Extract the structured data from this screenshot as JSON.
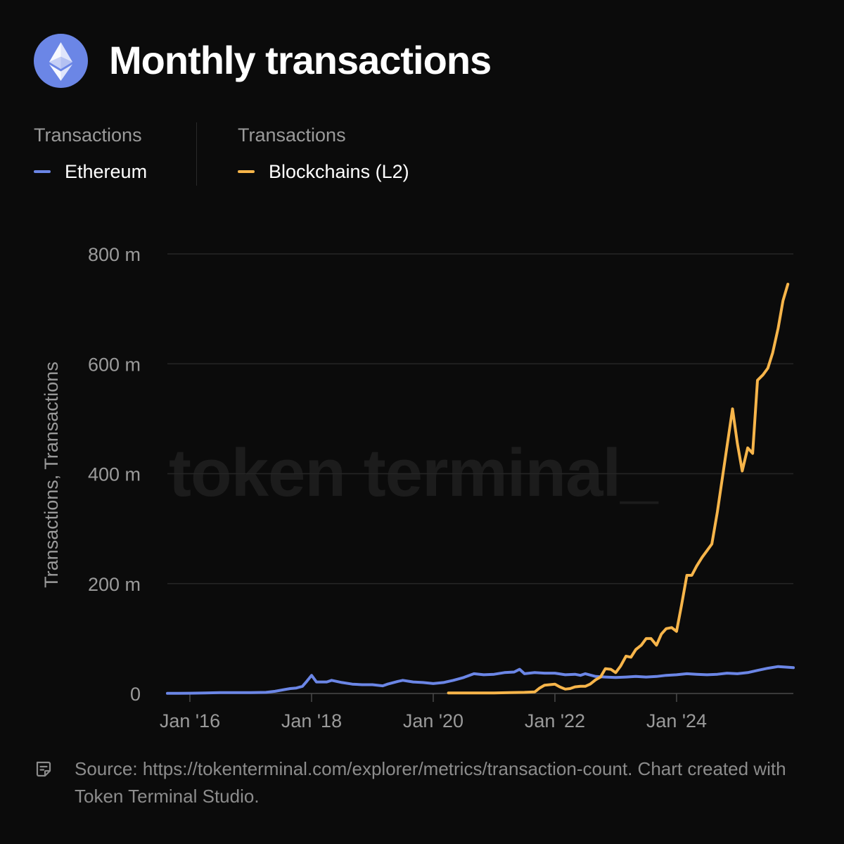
{
  "header": {
    "logo_icon": "ethereum-logo-icon",
    "title": "Monthly transactions"
  },
  "legend": [
    {
      "header": "Transactions",
      "label": "Ethereum",
      "color": "#6b86e6"
    },
    {
      "header": "Transactions",
      "label": "Blockchains (L2)",
      "color": "#f7b54a"
    }
  ],
  "watermark": "token terminal_",
  "footer": {
    "icon": "document-icon",
    "text": "Source: https://tokenterminal.com/explorer/metrics/transaction-count. Chart created with Token Terminal Studio."
  },
  "chart_data": {
    "type": "line",
    "title": "Monthly transactions",
    "xlabel": "",
    "ylabel": "Transactions, Transactions",
    "ylim": [
      0,
      800
    ],
    "y_unit": "m",
    "y_ticks": [
      {
        "value": 0,
        "label": "0"
      },
      {
        "value": 200,
        "label": "200 m"
      },
      {
        "value": 400,
        "label": "400 m"
      },
      {
        "value": 600,
        "label": "600 m"
      },
      {
        "value": 800,
        "label": "800 m"
      }
    ],
    "x_range": [
      2015.63,
      2025.92
    ],
    "x_ticks": [
      {
        "value": 2016,
        "label": "Jan '16"
      },
      {
        "value": 2018,
        "label": "Jan '18"
      },
      {
        "value": 2020,
        "label": "Jan '20"
      },
      {
        "value": 2022,
        "label": "Jan '22"
      },
      {
        "value": 2024,
        "label": "Jan '24"
      }
    ],
    "grid": true,
    "series": [
      {
        "name": "Ethereum",
        "color": "#6b86e6",
        "points": [
          [
            2015.63,
            0.2
          ],
          [
            2016.0,
            0.5
          ],
          [
            2016.25,
            1
          ],
          [
            2016.5,
            1.5
          ],
          [
            2016.75,
            1.5
          ],
          [
            2017.0,
            1.5
          ],
          [
            2017.25,
            2
          ],
          [
            2017.4,
            4
          ],
          [
            2017.55,
            7
          ],
          [
            2017.65,
            9
          ],
          [
            2017.75,
            10
          ],
          [
            2017.85,
            13
          ],
          [
            2017.92,
            22
          ],
          [
            2018.0,
            33
          ],
          [
            2018.08,
            21
          ],
          [
            2018.25,
            21
          ],
          [
            2018.33,
            24
          ],
          [
            2018.5,
            20
          ],
          [
            2018.67,
            17
          ],
          [
            2018.83,
            16
          ],
          [
            2019.0,
            16
          ],
          [
            2019.17,
            14
          ],
          [
            2019.25,
            17
          ],
          [
            2019.42,
            22
          ],
          [
            2019.5,
            24
          ],
          [
            2019.67,
            21
          ],
          [
            2019.83,
            20
          ],
          [
            2020.0,
            18
          ],
          [
            2020.17,
            20
          ],
          [
            2020.33,
            24
          ],
          [
            2020.5,
            29
          ],
          [
            2020.67,
            36
          ],
          [
            2020.83,
            34
          ],
          [
            2021.0,
            35
          ],
          [
            2021.17,
            38
          ],
          [
            2021.33,
            39
          ],
          [
            2021.42,
            44
          ],
          [
            2021.5,
            36
          ],
          [
            2021.67,
            38
          ],
          [
            2021.83,
            37
          ],
          [
            2022.0,
            37
          ],
          [
            2022.17,
            34
          ],
          [
            2022.33,
            35
          ],
          [
            2022.42,
            33
          ],
          [
            2022.5,
            36
          ],
          [
            2022.67,
            31
          ],
          [
            2022.83,
            30
          ],
          [
            2023.0,
            29
          ],
          [
            2023.17,
            30
          ],
          [
            2023.33,
            31
          ],
          [
            2023.5,
            30
          ],
          [
            2023.67,
            31
          ],
          [
            2023.83,
            33
          ],
          [
            2024.0,
            34
          ],
          [
            2024.17,
            36
          ],
          [
            2024.33,
            35
          ],
          [
            2024.5,
            34
          ],
          [
            2024.67,
            35
          ],
          [
            2024.83,
            37
          ],
          [
            2025.0,
            36
          ],
          [
            2025.17,
            38
          ],
          [
            2025.33,
            42
          ],
          [
            2025.5,
            46
          ],
          [
            2025.67,
            49
          ],
          [
            2025.8,
            48
          ],
          [
            2025.92,
            47
          ]
        ]
      },
      {
        "name": "Blockchains (L2)",
        "color": "#f7b54a",
        "points": [
          [
            2020.25,
            1
          ],
          [
            2020.75,
            1
          ],
          [
            2021.0,
            1
          ],
          [
            2021.25,
            1.5
          ],
          [
            2021.5,
            2
          ],
          [
            2021.67,
            3
          ],
          [
            2021.75,
            10
          ],
          [
            2021.83,
            15
          ],
          [
            2022.0,
            17
          ],
          [
            2022.08,
            12
          ],
          [
            2022.17,
            8
          ],
          [
            2022.25,
            9
          ],
          [
            2022.33,
            12
          ],
          [
            2022.42,
            13
          ],
          [
            2022.5,
            13
          ],
          [
            2022.58,
            17
          ],
          [
            2022.67,
            25
          ],
          [
            2022.75,
            30
          ],
          [
            2022.83,
            45
          ],
          [
            2022.92,
            44
          ],
          [
            2023.0,
            38
          ],
          [
            2023.08,
            50
          ],
          [
            2023.17,
            68
          ],
          [
            2023.25,
            66
          ],
          [
            2023.33,
            80
          ],
          [
            2023.42,
            88
          ],
          [
            2023.5,
            100
          ],
          [
            2023.58,
            100
          ],
          [
            2023.67,
            88
          ],
          [
            2023.75,
            108
          ],
          [
            2023.83,
            118
          ],
          [
            2023.92,
            120
          ],
          [
            2024.0,
            113
          ],
          [
            2024.08,
            160
          ],
          [
            2024.17,
            215
          ],
          [
            2024.25,
            215
          ],
          [
            2024.33,
            232
          ],
          [
            2024.42,
            248
          ],
          [
            2024.5,
            260
          ],
          [
            2024.58,
            272
          ],
          [
            2024.67,
            330
          ],
          [
            2024.75,
            390
          ],
          [
            2024.83,
            450
          ],
          [
            2024.92,
            518
          ],
          [
            2025.0,
            455
          ],
          [
            2025.08,
            405
          ],
          [
            2025.17,
            447
          ],
          [
            2025.25,
            437
          ],
          [
            2025.33,
            570
          ],
          [
            2025.42,
            580
          ],
          [
            2025.5,
            592
          ],
          [
            2025.58,
            620
          ],
          [
            2025.67,
            665
          ],
          [
            2025.75,
            715
          ],
          [
            2025.83,
            745
          ]
        ]
      }
    ]
  }
}
